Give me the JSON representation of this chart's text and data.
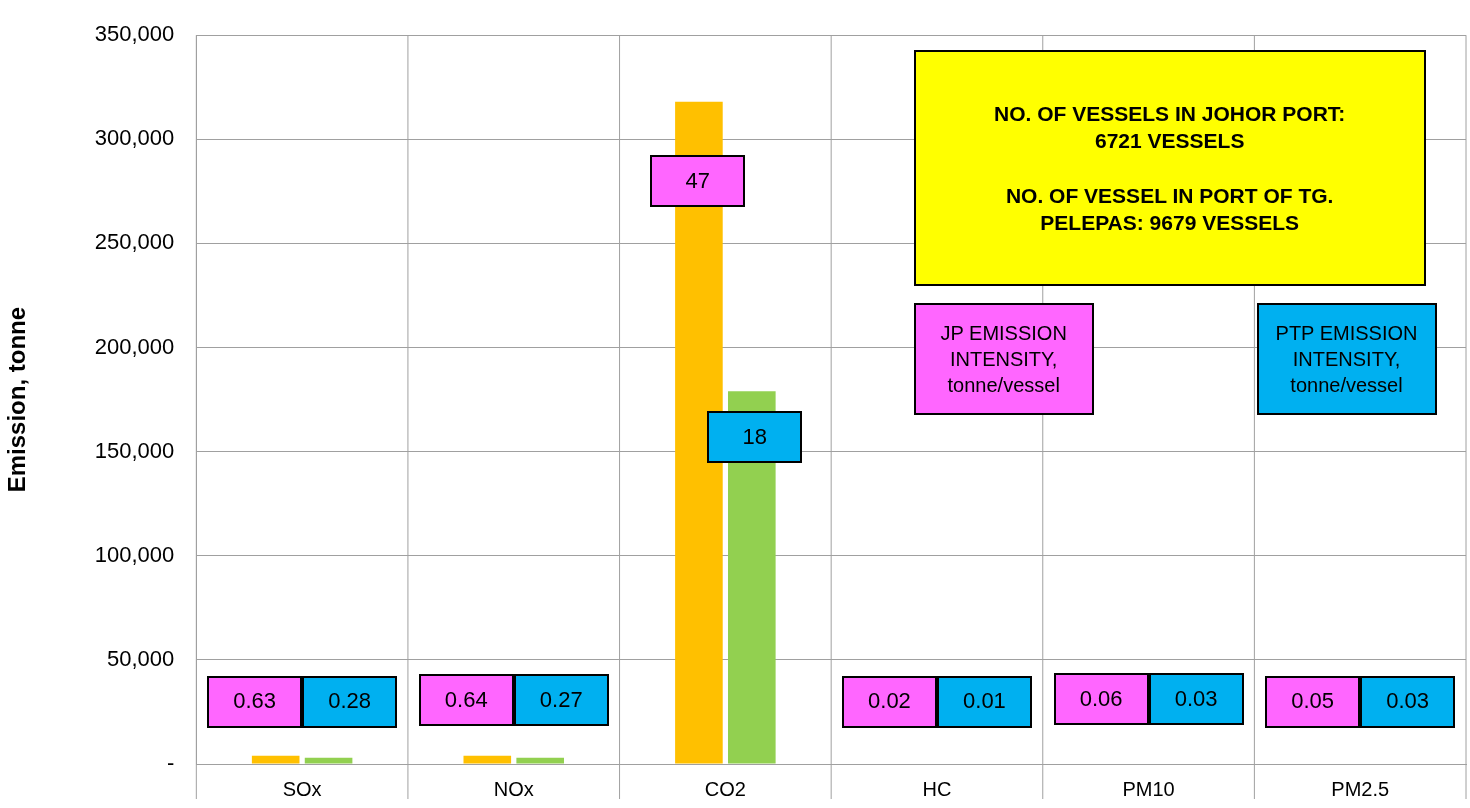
{
  "chart_data": {
    "type": "bar",
    "ylabel": "Emission, tonne",
    "categories": [
      "SOx",
      "NOx",
      "CO2",
      "HC",
      "PM10",
      "PM2.5"
    ],
    "series": [
      {
        "color": "#ffc000",
        "values": [
          4000,
          4000,
          318000,
          0,
          0,
          0
        ]
      },
      {
        "color": "#92d050",
        "values": [
          3000,
          3000,
          179000,
          0,
          0,
          0
        ]
      }
    ],
    "ylim": [
      0,
      350000
    ],
    "yticks": [
      {
        "value": 0,
        "label": "-"
      },
      {
        "value": 50000,
        "label": "50,000"
      },
      {
        "value": 100000,
        "label": "100,000"
      },
      {
        "value": 150000,
        "label": "150,000"
      },
      {
        "value": 200000,
        "label": "200,000"
      },
      {
        "value": 250000,
        "label": "250,000"
      },
      {
        "value": 300000,
        "label": "300,000"
      },
      {
        "value": 350000,
        "label": "350,000"
      }
    ],
    "grid": true,
    "legend": false,
    "annotations": [
      "NO. OF VESSELS IN JOHOR PORT:\n6721 VESSELS\n\nNO. OF VESSEL IN PORT OF TG.\nPELEPAS: 9679 VESSELS",
      "JP EMISSION\nINTENSITY,\ntonne/vessel",
      "PTP EMISSION\nINTENSITY,\ntonne/vessel",
      "0.63",
      "0.28",
      "0.64",
      "0.27",
      "47",
      "18",
      "0.02",
      "0.01",
      "0.06",
      "0.03",
      "0.05",
      "0.03"
    ]
  }
}
